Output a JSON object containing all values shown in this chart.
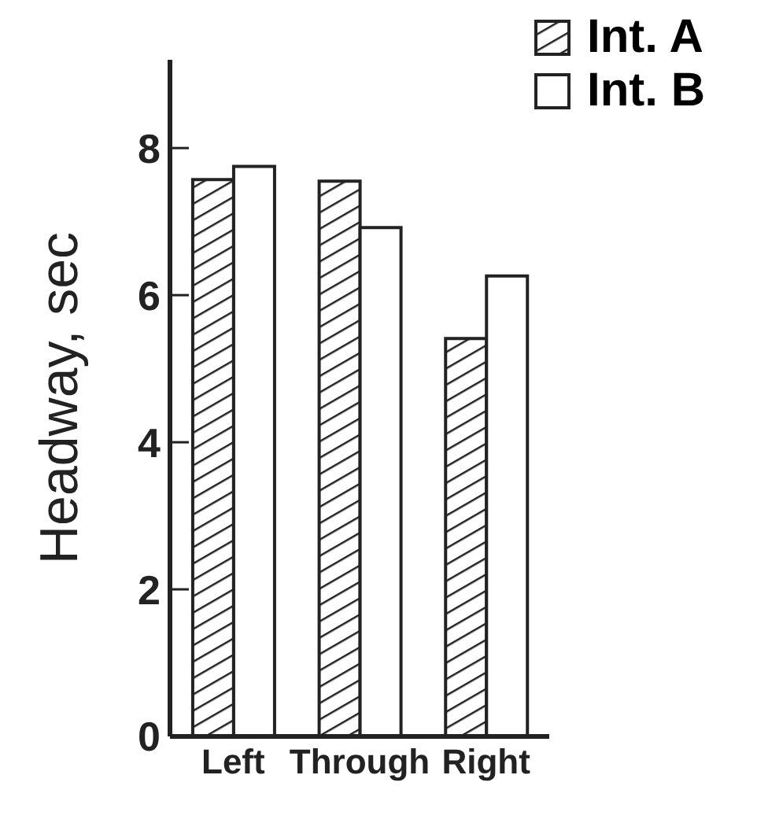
{
  "chart_data": {
    "type": "bar",
    "ylabel": "Headway,  sec",
    "categories": [
      "Left",
      "Through",
      "Right"
    ],
    "series": [
      {
        "name": "Int. A",
        "color": "#222222",
        "values": [
          7.57,
          7.55,
          5.41
        ]
      },
      {
        "name": "Int. B",
        "color": "#ffffff",
        "values": [
          7.75,
          6.92,
          6.26
        ]
      }
    ],
    "ylim": [
      0,
      9.2
    ],
    "yticks": [
      0,
      2,
      4,
      6,
      8
    ],
    "grid": false,
    "legend": "top right"
  }
}
